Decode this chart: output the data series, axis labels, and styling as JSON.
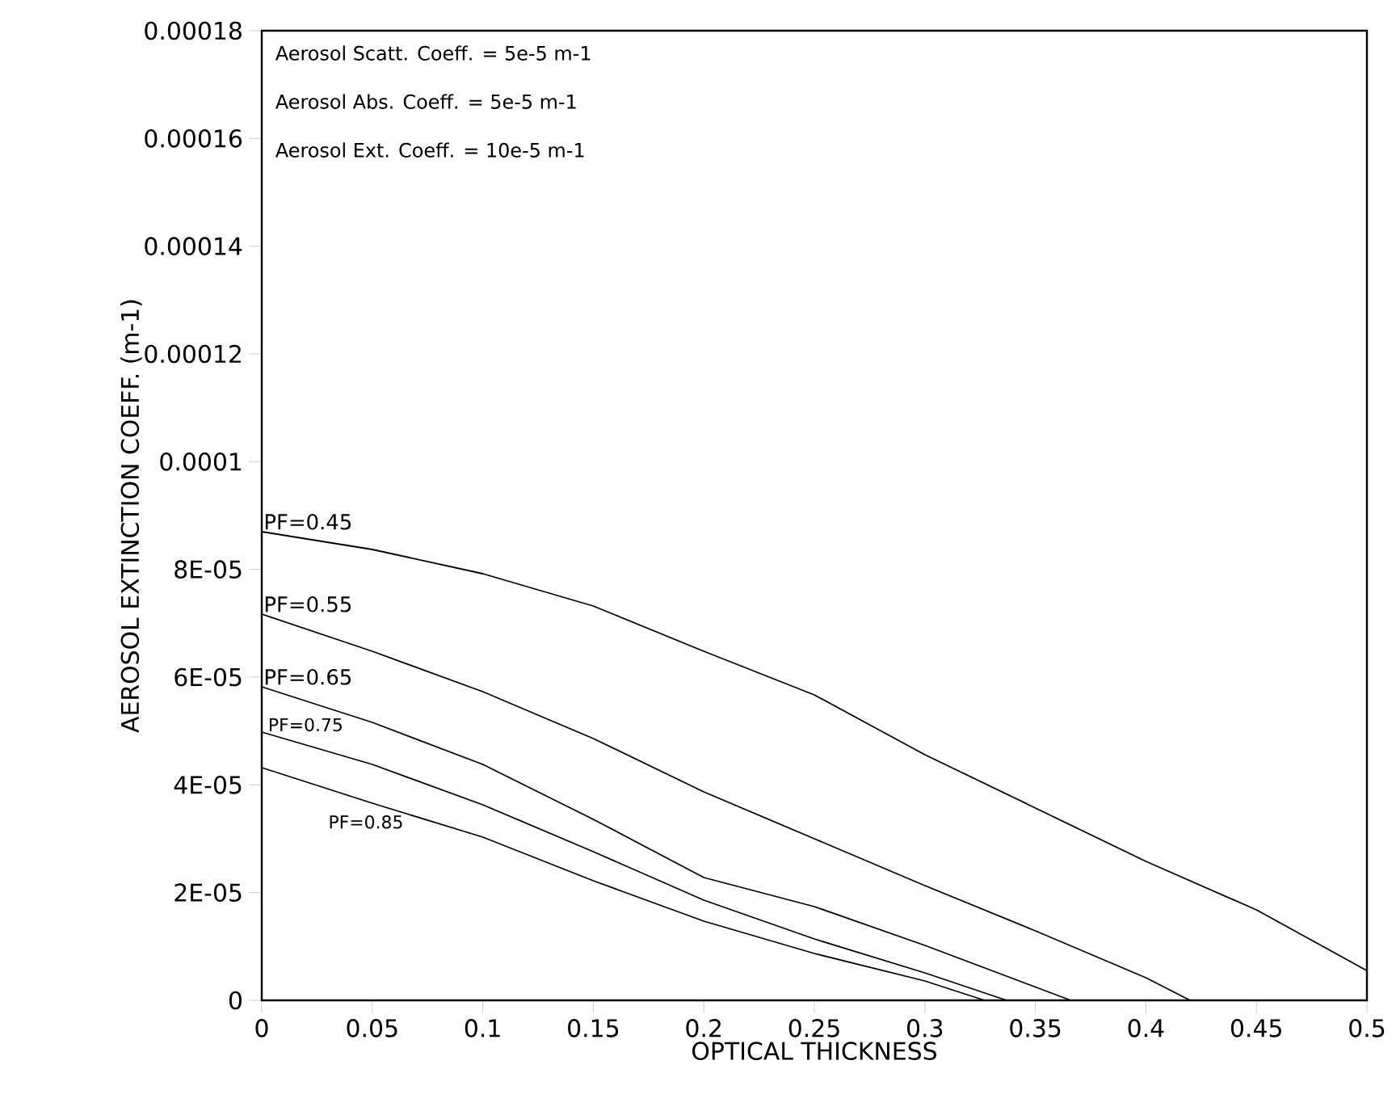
{
  "chart_data": {
    "type": "line",
    "xlabel": "OPTICAL THICKNESS",
    "ylabel": "AEROSOL EXTINCTION COEFF. (m-1)",
    "annotations": [
      "Aerosol Scatt. Coeff. = 5e-5 m-1",
      "Aerosol Abs. Coeff. = 5e-5 m-1",
      "Aerosol Ext. Coeff. = 10e-5 m-1"
    ],
    "xlim": [
      0,
      0.5
    ],
    "ylim": [
      0,
      0.00018
    ],
    "xticks": [
      0,
      0.05,
      0.1,
      0.15,
      0.2,
      0.25,
      0.3,
      0.35,
      0.4,
      0.45,
      0.5
    ],
    "yticks": [
      0,
      {
        "value": 2e-05,
        "label": "2E-05"
      },
      {
        "value": 4e-05,
        "label": "4E-05"
      },
      {
        "value": 6e-05,
        "label": "6E-05"
      },
      {
        "value": 8e-05,
        "label": "8E-05"
      },
      0.0001,
      0.00012,
      0.00014,
      0.00016,
      0.00018
    ],
    "marker": "none",
    "line_style": "solid",
    "series": [
      {
        "name": "PF=0.45",
        "color": "#000000",
        "x": [
          0,
          0.05,
          0.1,
          0.15,
          0.2,
          0.25,
          0.3,
          0.35,
          0.4,
          0.45,
          0.5
        ],
        "values": [
          8.7e-05,
          8.37e-05,
          7.92e-05,
          7.32e-05,
          6.48e-05,
          5.67e-05,
          4.56e-05,
          3.57e-05,
          2.58e-05,
          1.68e-05,
          5.5e-06
        ]
      },
      {
        "name": "PF=0.55",
        "color": "#000000",
        "x": [
          0,
          0.05,
          0.1,
          0.15,
          0.2,
          0.25,
          0.3,
          0.35,
          0.4,
          0.42
        ],
        "values": [
          7.17e-05,
          6.48e-05,
          5.73e-05,
          4.86e-05,
          3.87e-05,
          3e-05,
          2.13e-05,
          1.29e-05,
          4.2e-06,
          0
        ]
      },
      {
        "name": "PF=0.65",
        "color": "#000000",
        "x": [
          0,
          0.05,
          0.1,
          0.15,
          0.2,
          0.25,
          0.3,
          0.366
        ],
        "values": [
          5.82e-05,
          5.16e-05,
          4.38e-05,
          3.36e-05,
          2.28e-05,
          1.74e-05,
          1.02e-05,
          0
        ]
      },
      {
        "name": "PF=0.75",
        "color": "#000000",
        "x": [
          0,
          0.05,
          0.1,
          0.15,
          0.2,
          0.25,
          0.3,
          0.337
        ],
        "values": [
          4.98e-05,
          4.38e-05,
          3.63e-05,
          2.76e-05,
          1.86e-05,
          1.14e-05,
          5.1e-06,
          0
        ]
      },
      {
        "name": "PF=0.85",
        "color": "#000000",
        "x": [
          0,
          0.05,
          0.1,
          0.15,
          0.2,
          0.25,
          0.3,
          0.327
        ],
        "values": [
          4.32e-05,
          3.66e-05,
          3.03e-05,
          2.22e-05,
          1.47e-05,
          8.7e-06,
          3.6e-06,
          0
        ]
      }
    ]
  }
}
